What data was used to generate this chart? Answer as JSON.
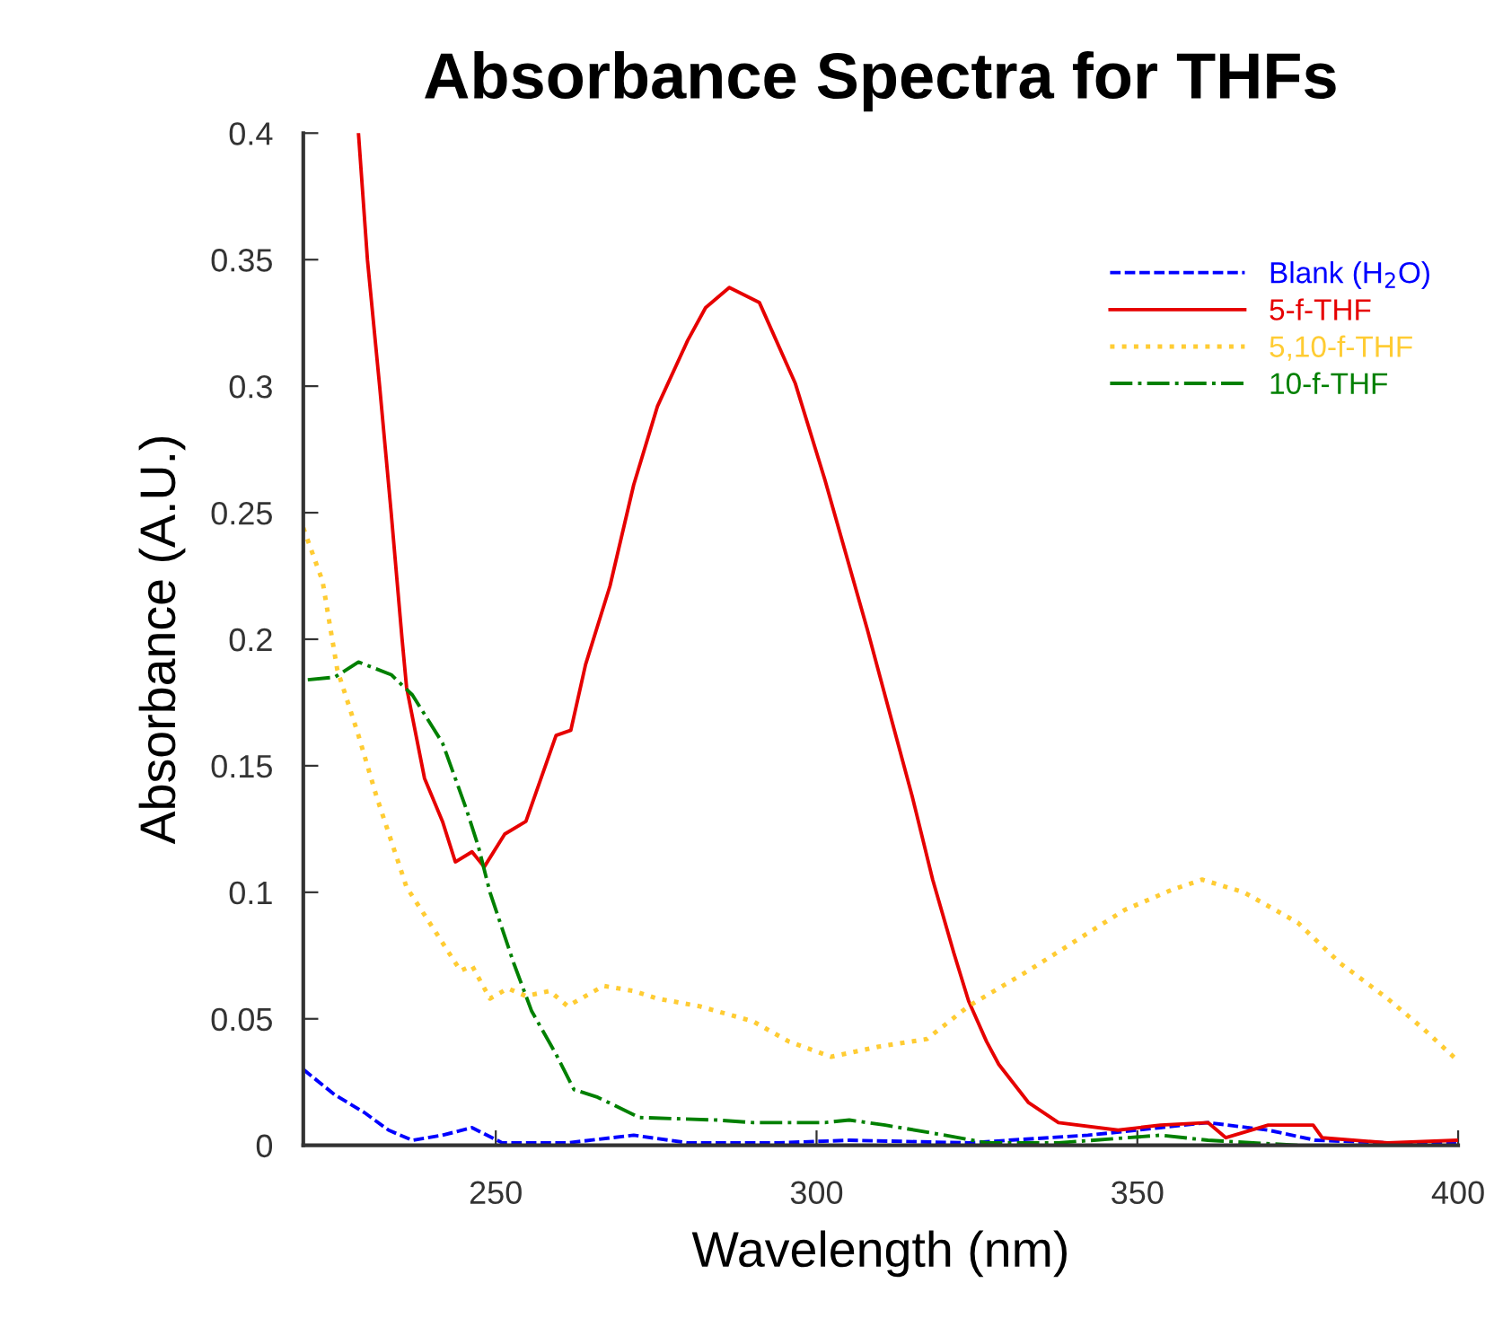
{
  "chart_data": {
    "type": "line",
    "title": "Absorbance Spectra for THFs",
    "xlabel": "Wavelength (nm)",
    "ylabel": "Absorbance (A.U.)",
    "xlim": [
      220,
      400
    ],
    "xticks": [
      250,
      300,
      350,
      400
    ],
    "ylim": [
      0,
      0.4
    ],
    "yticks": [
      0,
      0.05,
      0.1,
      0.15,
      0.2,
      0.25,
      0.3,
      0.35,
      0.4
    ],
    "grid": false,
    "legend": "top right",
    "marker": "none",
    "series": [
      {
        "name": "Blank (H$_{2}$O)",
        "color": "#0000ff",
        "line_style": "dashed",
        "x": [
          220,
          224.9,
          229.5,
          233.3,
          237.0,
          241.7,
          246.3,
          251.0,
          261.2,
          271.5,
          279.9,
          293.9,
          305.1,
          323.7,
          342.3,
          353.6,
          361.0,
          370.4,
          377.8,
          389.0,
          399.7
        ],
        "values": [
          0.03,
          0.02,
          0.013,
          0.006,
          0.002,
          0.004,
          0.007,
          0.001,
          0.001,
          0.004,
          0.001,
          0.001,
          0.002,
          0.001,
          0.004,
          0.007,
          0.009,
          0.006,
          0.002,
          0.001,
          0.001
        ]
      },
      {
        "name": "5-f-THF",
        "color": "#e60000",
        "line_style": "solid",
        "x": [
          228.6,
          230.0,
          231.9,
          233.7,
          235.4,
          236.1,
          238.9,
          241.7,
          243.7,
          246.3,
          248.2,
          251.4,
          254.7,
          259.4,
          261.7,
          264.0,
          267.8,
          271.5,
          275.2,
          279.9,
          282.7,
          286.4,
          291.1,
          296.7,
          301.3,
          307.9,
          311.6,
          314.9,
          318.1,
          321.4,
          323.7,
          326.5,
          328.4,
          333.0,
          337.7,
          347.0,
          353.6,
          361.0,
          363.8,
          370.4,
          377.4,
          378.8,
          389.0,
          399.7
        ],
        "values": [
          0.4,
          0.35,
          0.3,
          0.25,
          0.2,
          0.181,
          0.145,
          0.128,
          0.112,
          0.116,
          0.11,
          0.123,
          0.128,
          0.162,
          0.164,
          0.19,
          0.221,
          0.261,
          0.292,
          0.318,
          0.331,
          0.339,
          0.333,
          0.301,
          0.263,
          0.204,
          0.169,
          0.138,
          0.105,
          0.076,
          0.057,
          0.041,
          0.032,
          0.017,
          0.009,
          0.006,
          0.008,
          0.009,
          0.003,
          0.008,
          0.008,
          0.003,
          0.001,
          0.002
        ]
      },
      {
        "name": "5,10-f-THF",
        "color": "#ffcc33",
        "line_style": "dotted",
        "x": [
          220,
          223.0,
          225.3,
          228.6,
          231.4,
          236.1,
          240.7,
          244.5,
          246.3,
          249.1,
          251.9,
          254.7,
          258.4,
          261.2,
          266.8,
          271.5,
          275.2,
          281.7,
          290.1,
          295.7,
          302.3,
          309.7,
          317.2,
          323.7,
          333.0,
          340.5,
          348.0,
          355.4,
          360.1,
          366.6,
          375.0,
          381.6,
          389.0,
          394.6,
          399.7
        ],
        "values": [
          0.244,
          0.223,
          0.188,
          0.162,
          0.138,
          0.102,
          0.084,
          0.069,
          0.071,
          0.058,
          0.062,
          0.059,
          0.061,
          0.055,
          0.063,
          0.061,
          0.058,
          0.055,
          0.049,
          0.041,
          0.035,
          0.039,
          0.042,
          0.055,
          0.069,
          0.081,
          0.093,
          0.101,
          0.105,
          0.1,
          0.088,
          0.072,
          0.058,
          0.046,
          0.034
        ]
      },
      {
        "name": "10-f-THF",
        "color": "#008000",
        "line_style": "dashdot",
        "x": [
          220.7,
          224.9,
          228.6,
          233.7,
          237.0,
          241.7,
          245.4,
          247.3,
          249.1,
          252.8,
          255.6,
          259.4,
          262.2,
          265.9,
          272.4,
          284.5,
          290.1,
          301.3,
          305.1,
          310.7,
          320.0,
          326.5,
          337.7,
          353.6,
          361.0,
          375.0
        ],
        "values": [
          0.184,
          0.185,
          0.191,
          0.186,
          0.178,
          0.159,
          0.133,
          0.118,
          0.1,
          0.072,
          0.053,
          0.036,
          0.022,
          0.019,
          0.011,
          0.01,
          0.009,
          0.009,
          0.01,
          0.008,
          0.004,
          0.001,
          0.001,
          0.004,
          0.002,
          0.0
        ]
      }
    ]
  }
}
